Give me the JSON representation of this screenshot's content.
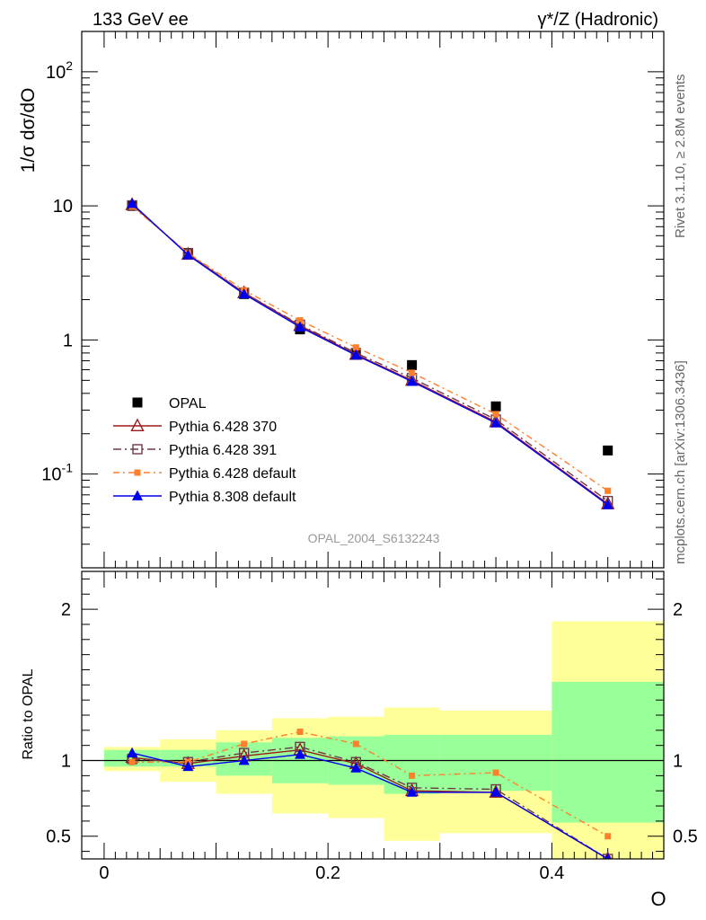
{
  "header": {
    "left_label": "133 GeV ee",
    "right_label": "γ*/Z (Hadronic)"
  },
  "side_labels": {
    "rivet": "Rivet 3.1.10, ≥ 2.8M events",
    "mcplots": "mcplots.cern.ch [arXiv:1306.3436]"
  },
  "colors": {
    "data": "#000000",
    "p370": "#9a1a1a",
    "p391": "#6e3a4a",
    "p6def": "#ff7f2a",
    "p8def": "#0000ee",
    "band_green": "#99ff99",
    "band_yellow": "#ffff99"
  },
  "chart_data": [
    {
      "type": "line",
      "panel": "main",
      "analysis_label": "OPAL_2004_S6132243",
      "ylabel": "1/σ dσ/dO",
      "yscale": "log",
      "ylim": [
        0.02,
        200
      ],
      "xlim": [
        -0.02,
        0.5
      ],
      "ytick_labels": [
        "10^-1",
        "1",
        "10",
        "10^2"
      ],
      "legend_position": "lower-left",
      "x": [
        0.025,
        0.075,
        0.125,
        0.175,
        0.225,
        0.275,
        0.35,
        0.45
      ],
      "series": [
        {
          "name": "OPAL",
          "style": "data",
          "values": [
            10.0,
            4.45,
            2.2,
            1.2,
            0.8,
            0.65,
            0.32,
            0.15
          ]
        },
        {
          "name": "Pythia 6.428 370",
          "style": "p370",
          "values": [
            10.2,
            4.35,
            2.25,
            1.28,
            0.78,
            0.5,
            0.245,
            0.06
          ]
        },
        {
          "name": "Pythia 6.428 391",
          "style": "p391",
          "values": [
            10.1,
            4.4,
            2.25,
            1.3,
            0.8,
            0.52,
            0.255,
            0.063
          ]
        },
        {
          "name": "Pythia 6.428 default",
          "style": "p6def",
          "values": [
            9.9,
            4.45,
            2.35,
            1.4,
            0.88,
            0.57,
            0.28,
            0.075
          ]
        },
        {
          "name": "Pythia 8.308 default",
          "style": "p8def",
          "values": [
            10.4,
            4.3,
            2.2,
            1.25,
            0.77,
            0.49,
            0.24,
            0.059
          ]
        }
      ]
    },
    {
      "type": "line",
      "panel": "ratio",
      "ylabel": "Ratio to OPAL",
      "xlabel": "O",
      "ylim": [
        0.35,
        2.25
      ],
      "xlim": [
        -0.02,
        0.5
      ],
      "ytick_labels": [
        "0.5",
        "1",
        "2"
      ],
      "xtick_labels": [
        "0",
        "0.2",
        "0.4"
      ],
      "x": [
        0.025,
        0.075,
        0.125,
        0.175,
        0.225,
        0.275,
        0.35,
        0.45
      ],
      "bins": [
        [
          0,
          0.05
        ],
        [
          0.05,
          0.1
        ],
        [
          0.1,
          0.15
        ],
        [
          0.15,
          0.2
        ],
        [
          0.2,
          0.25
        ],
        [
          0.25,
          0.3
        ],
        [
          0.3,
          0.4
        ],
        [
          0.4,
          0.5
        ]
      ],
      "band_green": [
        [
          0.96,
          1.07
        ],
        [
          0.96,
          1.07
        ],
        [
          0.9,
          1.12
        ],
        [
          0.85,
          1.15
        ],
        [
          0.84,
          1.16
        ],
        [
          0.78,
          1.17
        ],
        [
          0.8,
          1.17
        ],
        [
          0.59,
          1.52
        ]
      ],
      "band_yellow": [
        [
          0.93,
          1.09
        ],
        [
          0.86,
          1.14
        ],
        [
          0.78,
          1.2
        ],
        [
          0.65,
          1.28
        ],
        [
          0.62,
          1.29
        ],
        [
          0.47,
          1.35
        ],
        [
          0.52,
          1.33
        ],
        [
          0.35,
          1.92
        ]
      ],
      "series": [
        {
          "name": "Pythia 6.428 370",
          "style": "p370",
          "values": [
            1.02,
            0.98,
            1.03,
            1.07,
            0.98,
            0.8,
            0.79,
            0.35
          ]
        },
        {
          "name": "Pythia 6.428 391",
          "style": "p391",
          "values": [
            1.01,
            0.99,
            1.05,
            1.09,
            0.99,
            0.82,
            0.81,
            0.35
          ]
        },
        {
          "name": "Pythia 6.428 default",
          "style": "p6def",
          "values": [
            0.99,
            0.99,
            1.11,
            1.19,
            1.11,
            0.9,
            0.92,
            0.5
          ]
        },
        {
          "name": "Pythia 8.308 default",
          "style": "p8def",
          "values": [
            1.05,
            0.96,
            1.0,
            1.04,
            0.95,
            0.79,
            0.79,
            0.35
          ]
        }
      ]
    }
  ]
}
